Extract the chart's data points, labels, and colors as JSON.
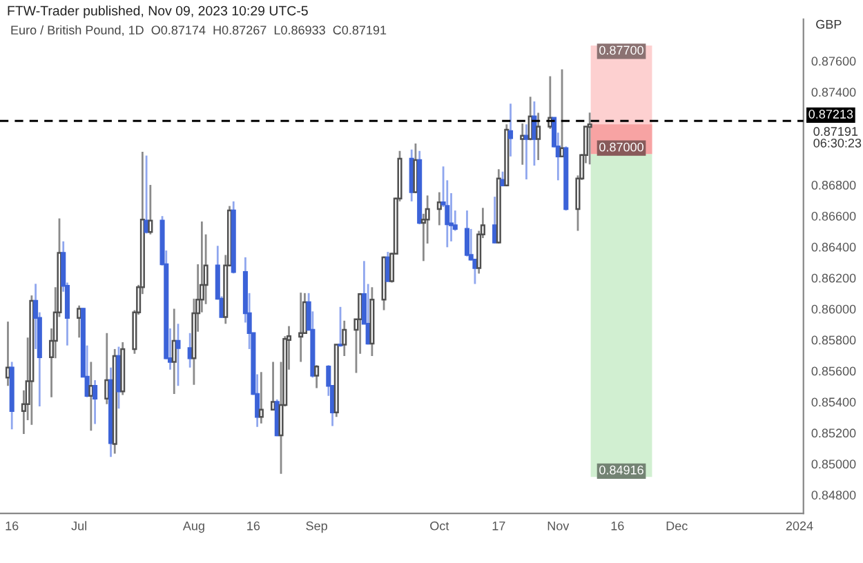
{
  "chart_data": {
    "type": "candlestick",
    "title": "FTW-Trader published, Nov 09, 2023 10:29 UTC-5",
    "subtitle": "Euro / British Pound, 1D  O0.87174  H0.87267  L0.86933  C0.87191",
    "x": [
      "2023-06-15",
      "2023-06-16",
      "2023-06-19",
      "2023-06-20",
      "2023-06-21",
      "2023-06-22",
      "2023-06-23",
      "2023-06-26",
      "2023-06-27",
      "2023-06-28",
      "2023-06-29",
      "2023-06-30",
      "2023-07-03",
      "2023-07-04",
      "2023-07-05",
      "2023-07-06",
      "2023-07-07",
      "2023-07-10",
      "2023-07-11",
      "2023-07-12",
      "2023-07-13",
      "2023-07-14",
      "2023-07-17",
      "2023-07-18",
      "2023-07-19",
      "2023-07-20",
      "2023-07-21",
      "2023-07-24",
      "2023-07-25",
      "2023-07-26",
      "2023-07-27",
      "2023-07-28",
      "2023-07-31",
      "2023-08-01",
      "2023-08-02",
      "2023-08-03",
      "2023-08-04",
      "2023-08-07",
      "2023-08-08",
      "2023-08-09",
      "2023-08-10",
      "2023-08-11",
      "2023-08-14",
      "2023-08-15",
      "2023-08-16",
      "2023-08-17",
      "2023-08-18",
      "2023-08-21",
      "2023-08-22",
      "2023-08-23",
      "2023-08-24",
      "2023-08-25",
      "2023-08-28",
      "2023-08-29",
      "2023-08-30",
      "2023-08-31",
      "2023-09-01",
      "2023-09-04",
      "2023-09-05",
      "2023-09-06",
      "2023-09-07",
      "2023-09-08",
      "2023-09-11",
      "2023-09-12",
      "2023-09-13",
      "2023-09-14",
      "2023-09-15",
      "2023-09-18",
      "2023-09-19",
      "2023-09-20",
      "2023-09-21",
      "2023-09-22",
      "2023-09-25",
      "2023-09-26",
      "2023-09-27",
      "2023-09-28",
      "2023-09-29",
      "2023-10-02",
      "2023-10-03",
      "2023-10-04",
      "2023-10-05",
      "2023-10-06",
      "2023-10-09",
      "2023-10-10",
      "2023-10-11",
      "2023-10-12",
      "2023-10-13",
      "2023-10-16",
      "2023-10-17",
      "2023-10-18",
      "2023-10-19",
      "2023-10-20",
      "2023-10-23",
      "2023-10-24",
      "2023-10-25",
      "2023-10-26",
      "2023-10-27",
      "2023-10-30",
      "2023-10-31",
      "2023-11-01",
      "2023-11-02",
      "2023-11-03",
      "2023-11-06",
      "2023-11-07",
      "2023-11-08",
      "2023-11-09"
    ],
    "ohlc": [
      [
        0.85557,
        0.85918,
        0.85504,
        0.85622
      ],
      [
        0.85622,
        0.85658,
        0.85223,
        0.85341
      ],
      [
        0.85341,
        0.85474,
        0.85193,
        0.85386
      ],
      [
        0.85386,
        0.85815,
        0.85282,
        0.85534
      ],
      [
        0.85534,
        0.86087,
        0.85252,
        0.86052
      ],
      [
        0.86052,
        0.86162,
        0.85741,
        0.85942
      ],
      [
        0.85942,
        0.85978,
        0.85371,
        0.85688
      ],
      [
        0.85688,
        0.85874,
        0.8543,
        0.85794
      ],
      [
        0.85794,
        0.8614,
        0.85682,
        0.85978
      ],
      [
        0.85978,
        0.86584,
        0.85948,
        0.86362
      ],
      [
        0.86362,
        0.86436,
        0.86111,
        0.86149
      ],
      [
        0.86149,
        0.8617,
        0.85764,
        0.85942
      ],
      [
        0.85942,
        0.86022,
        0.85815,
        0.86001
      ],
      [
        0.86001,
        0.86007,
        0.85563,
        0.85563
      ],
      [
        0.85563,
        0.85764,
        0.8543,
        0.85439
      ],
      [
        0.85439,
        0.85658,
        0.85214,
        0.85504
      ],
      [
        0.85504,
        0.8554,
        0.85258,
        0.85421
      ],
      [
        0.85421,
        0.85844,
        0.85386,
        0.8554
      ],
      [
        0.8554,
        0.85622,
        0.85045,
        0.85134
      ],
      [
        0.85128,
        0.85741,
        0.85066,
        0.85696
      ],
      [
        0.85696,
        0.85756,
        0.85356,
        0.85468
      ],
      [
        0.85468,
        0.85785,
        0.85445,
        0.85741
      ],
      [
        0.85741,
        0.85992,
        0.85711,
        0.85978
      ],
      [
        0.85978,
        0.86155,
        0.85963,
        0.8614
      ],
      [
        0.8614,
        0.87014,
        0.86096,
        0.86576
      ],
      [
        0.8657,
        0.8699,
        0.86487,
        0.86496
      ],
      [
        0.86496,
        0.868,
        0.86481,
        0.8657
      ],
      [
        0.8657,
        0.86599,
        0.8628,
        0.86288
      ],
      [
        0.86288,
        0.86377,
        0.85676,
        0.85682
      ],
      [
        0.85682,
        0.85874,
        0.85608,
        0.85658
      ],
      [
        0.85658,
        0.86001,
        0.85451,
        0.85794
      ],
      [
        0.85794,
        0.85904,
        0.85504,
        0.85747
      ],
      [
        0.85747,
        0.85844,
        0.85622,
        0.85682
      ],
      [
        0.85682,
        0.86066,
        0.8551,
        0.85972
      ],
      [
        0.85972,
        0.86288,
        0.85853,
        0.8606
      ],
      [
        0.8606,
        0.86564,
        0.85978,
        0.86155
      ],
      [
        0.86155,
        0.86481,
        0.86031,
        0.8628
      ],
      [
        0.8628,
        0.86407,
        0.8606,
        0.86066
      ],
      [
        0.86066,
        0.86081,
        0.85942,
        0.85948
      ],
      [
        0.85948,
        0.86348,
        0.85904,
        0.8628
      ],
      [
        0.8628,
        0.86664,
        0.86274,
        0.86635
      ],
      [
        0.86635,
        0.86694,
        0.86229,
        0.86238
      ],
      [
        0.86238,
        0.86333,
        0.85912,
        0.85972
      ],
      [
        0.85972,
        0.86102,
        0.85741,
        0.85844
      ],
      [
        0.85844,
        0.85844,
        0.85445,
        0.85451
      ],
      [
        0.85451,
        0.85578,
        0.85238,
        0.85303
      ],
      [
        0.85303,
        0.85593,
        0.85261,
        0.8535
      ],
      [
        0.8535,
        0.85658,
        0.8535,
        0.854
      ],
      [
        0.854,
        0.85415,
        0.85178,
        0.85184
      ],
      [
        0.85184,
        0.85658,
        0.84936,
        0.8538
      ],
      [
        0.8538,
        0.85824,
        0.85371,
        0.85806
      ],
      [
        0.858,
        0.85889,
        0.85608,
        0.85824
      ],
      [
        0.85821,
        0.86105,
        0.85658,
        0.85844
      ],
      [
        0.85844,
        0.86102,
        0.85844,
        0.86043
      ],
      [
        0.86043,
        0.86102,
        0.85865,
        0.85865
      ],
      [
        0.85865,
        0.85984,
        0.85557,
        0.85569
      ],
      [
        0.85569,
        0.85637,
        0.85489,
        0.85628
      ],
      [
        0.85628,
        0.85637,
        0.85439,
        0.85504
      ],
      [
        0.85504,
        0.85504,
        0.85244,
        0.85332
      ],
      [
        0.85332,
        0.8577,
        0.85303,
        0.8577
      ],
      [
        0.8577,
        0.86013,
        0.85756,
        0.85764
      ],
      [
        0.8577,
        0.85924,
        0.85696,
        0.85865
      ],
      [
        0.85865,
        0.85933,
        0.85587,
        0.85933
      ],
      [
        0.85933,
        0.86102,
        0.85711,
        0.86096
      ],
      [
        0.86096,
        0.86309,
        0.85904,
        0.85904
      ],
      [
        0.85904,
        0.86161,
        0.8577,
        0.85776
      ],
      [
        0.85776,
        0.8614,
        0.85696,
        0.8606
      ],
      [
        0.8606,
        0.86339,
        0.85992,
        0.86333
      ],
      [
        0.86333,
        0.86368,
        0.86179,
        0.86179
      ],
      [
        0.86179,
        0.86362,
        0.8617,
        0.86356
      ],
      [
        0.86356,
        0.86718,
        0.86356,
        0.86712
      ],
      [
        0.86712,
        0.8702,
        0.86694,
        0.86969
      ],
      [
        0.86969,
        0.87028,
        0.86694,
        0.86753
      ],
      [
        0.86753,
        0.87067,
        0.86747,
        0.8696
      ],
      [
        0.8696,
        0.8702,
        0.86546,
        0.86555
      ],
      [
        0.86555,
        0.86614,
        0.86309,
        0.86576
      ],
      [
        0.86576,
        0.86732,
        0.86422,
        0.86644
      ],
      [
        0.86644,
        0.86753,
        0.8654,
        0.86688
      ],
      [
        0.86688,
        0.86919,
        0.86658,
        0.86673
      ],
      [
        0.86664,
        0.8683,
        0.86398,
        0.86546
      ],
      [
        0.86552,
        0.86747,
        0.86436,
        0.8654
      ],
      [
        0.8654,
        0.86635,
        0.86504,
        0.86516
      ],
      [
        0.86516,
        0.86635,
        0.86339,
        0.86348
      ],
      [
        0.86348,
        0.86516,
        0.86312,
        0.86318
      ],
      [
        0.86318,
        0.86318,
        0.86161,
        0.86264
      ],
      [
        0.86264,
        0.86504,
        0.86228,
        0.86481
      ],
      [
        0.86481,
        0.86652,
        0.86457,
        0.8654
      ],
      [
        0.8654,
        0.86724,
        0.86422,
        0.86428
      ],
      [
        0.86428,
        0.86901,
        0.86422,
        0.86841
      ],
      [
        0.86832,
        0.86886,
        0.86791,
        0.86797
      ],
      [
        0.86797,
        0.87191,
        0.86791,
        0.87156
      ],
      [
        0.87147,
        0.87324,
        0.86984,
        0.87102
      ],
      [
        0.87096,
        0.87197,
        0.86931,
        0.87117
      ],
      [
        0.87117,
        0.87191,
        0.86836,
        0.87096
      ],
      [
        0.87096,
        0.87369,
        0.87088,
        0.87242
      ],
      [
        0.87242,
        0.87339,
        0.86925,
        0.87096
      ],
      [
        0.87096,
        0.87265,
        0.8696,
        0.87176
      ],
      [
        0.87176,
        0.87502,
        0.87162,
        0.87233
      ],
      [
        0.87233,
        0.87236,
        0.87043,
        0.87049
      ],
      [
        0.87049,
        0.87137,
        0.8683,
        0.86984
      ],
      [
        0.86984,
        0.87546,
        0.86978,
        0.87037
      ],
      [
        0.87037,
        0.87049,
        0.86635,
        0.86644
      ],
      [
        0.86644,
        0.86862,
        0.86504,
        0.86841
      ],
      [
        0.86841,
        0.86999,
        0.86832,
        0.86993
      ],
      [
        0.86993,
        0.87176,
        0.8694,
        0.87176
      ],
      [
        0.87174,
        0.87267,
        0.86933,
        0.87191
      ]
    ],
    "colors": [
      "#ffffff",
      "#3c63d8",
      "#ffffff",
      "#ffffff",
      "#ffffff",
      "#3c63d8",
      "#3c63d8",
      "#ffffff",
      "#ffffff",
      "#ffffff",
      "#3c63d8",
      "#3c63d8",
      "#ffffff",
      "#3c63d8",
      "#3c63d8",
      "#ffffff",
      "#3c63d8",
      "#ffffff",
      "#3c63d8",
      "#ffffff",
      "#3c63d8",
      "#ffffff",
      "#ffffff",
      "#ffffff",
      "#ffffff",
      "#3c63d8",
      "#ffffff",
      "#3c63d8",
      "#3c63d8",
      "#3c63d8",
      "#ffffff",
      "#3c63d8",
      "#3c63d8",
      "#ffffff",
      "#ffffff",
      "#ffffff",
      "#ffffff",
      "#3c63d8",
      "#3c63d8",
      "#ffffff",
      "#ffffff",
      "#3c63d8",
      "#3c63d8",
      "#3c63d8",
      "#3c63d8",
      "#3c63d8",
      "#ffffff",
      "#ffffff",
      "#3c63d8",
      "#ffffff",
      "#ffffff",
      "#ffffff",
      "#ffffff",
      "#ffffff",
      "#3c63d8",
      "#3c63d8",
      "#ffffff",
      "#3c63d8",
      "#3c63d8",
      "#ffffff",
      "#3c63d8",
      "#ffffff",
      "#ffffff",
      "#ffffff",
      "#3c63d8",
      "#3c63d8",
      "#ffffff",
      "#ffffff",
      "#3c63d8",
      "#ffffff",
      "#ffffff",
      "#ffffff",
      "#3c63d8",
      "#ffffff",
      "#3c63d8",
      "#ffffff",
      "#ffffff",
      "#ffffff",
      "#3c63d8",
      "#3c63d8",
      "#3c63d8",
      "#3c63d8",
      "#3c63d8",
      "#3c63d8",
      "#3c63d8",
      "#ffffff",
      "#ffffff",
      "#3c63d8",
      "#ffffff",
      "#3c63d8",
      "#ffffff",
      "#3c63d8",
      "#ffffff",
      "#3c63d8",
      "#ffffff",
      "#3c63d8",
      "#ffffff",
      "#ffffff",
      "#3c63d8",
      "#3c63d8",
      "#ffffff",
      "#3c63d8",
      "#ffffff",
      "#ffffff",
      "#ffffff",
      "#ffffff"
    ],
    "series": [
      {
        "type": "bar",
        "x": [
          "2023-11-17"
        ],
        "base": [
          0.87
        ],
        "values": [
          0.007
        ],
        "color": "#fdd0d0",
        "value_labels": [
          "0.87700"
        ]
      },
      {
        "type": "bar",
        "x": [
          "2023-11-17"
        ],
        "base": [
          0.87
        ],
        "values": [
          -0.02084
        ],
        "color": "#d1efd1",
        "value_labels": [
          "0.84916"
        ]
      },
      {
        "type": "bar",
        "x": [
          "2023-11-17"
        ],
        "base": [
          0.87191
        ],
        "values": [
          -0.00191
        ],
        "color": "#f7a3a3",
        "value_labels": [
          "0.87000"
        ]
      }
    ],
    "ref_lines": [
      {
        "axis": "y",
        "value": 0.87213,
        "label": "0.87213",
        "color": "#000000",
        "line_style": "dashed"
      }
    ],
    "annotations": [
      "GBP",
      "0.87191\n06:30:23"
    ],
    "xlim": [
      "2023-06-13",
      "2024-01-02"
    ],
    "xticks": [
      {
        "value": "2023-06-16",
        "label": "16"
      },
      {
        "value": "2023-07-03",
        "label": "Jul"
      },
      {
        "value": "2023-08-01",
        "label": "Aug"
      },
      {
        "value": "2023-08-16",
        "label": "16"
      },
      {
        "value": "2023-09-01",
        "label": "Sep"
      },
      {
        "value": "2023-10-02",
        "label": "Oct"
      },
      {
        "value": "2023-10-17",
        "label": "17"
      },
      {
        "value": "2023-11-01",
        "label": "Nov"
      },
      {
        "value": "2023-11-16",
        "label": "16"
      },
      {
        "value": "2023-12-01",
        "label": "Dec"
      },
      {
        "value": "2024-01-01",
        "label": "2024"
      }
    ],
    "ylim": [
      0.8468,
      0.8787
    ],
    "yticks": [
      {
        "value": 0.848,
        "label": "0.84800"
      },
      {
        "value": 0.85,
        "label": "0.85000"
      },
      {
        "value": 0.852,
        "label": "0.85200"
      },
      {
        "value": 0.854,
        "label": "0.85400"
      },
      {
        "value": 0.856,
        "label": "0.85600"
      },
      {
        "value": 0.858,
        "label": "0.85800"
      },
      {
        "value": 0.86,
        "label": "0.86000"
      },
      {
        "value": 0.862,
        "label": "0.86200"
      },
      {
        "value": 0.864,
        "label": "0.86400"
      },
      {
        "value": 0.866,
        "label": "0.86600"
      },
      {
        "value": 0.868,
        "label": "0.86800"
      },
      {
        "value": 0.874,
        "label": "0.87400"
      },
      {
        "value": 0.876,
        "label": "0.87600"
      }
    ],
    "grid": false,
    "legend": false
  }
}
